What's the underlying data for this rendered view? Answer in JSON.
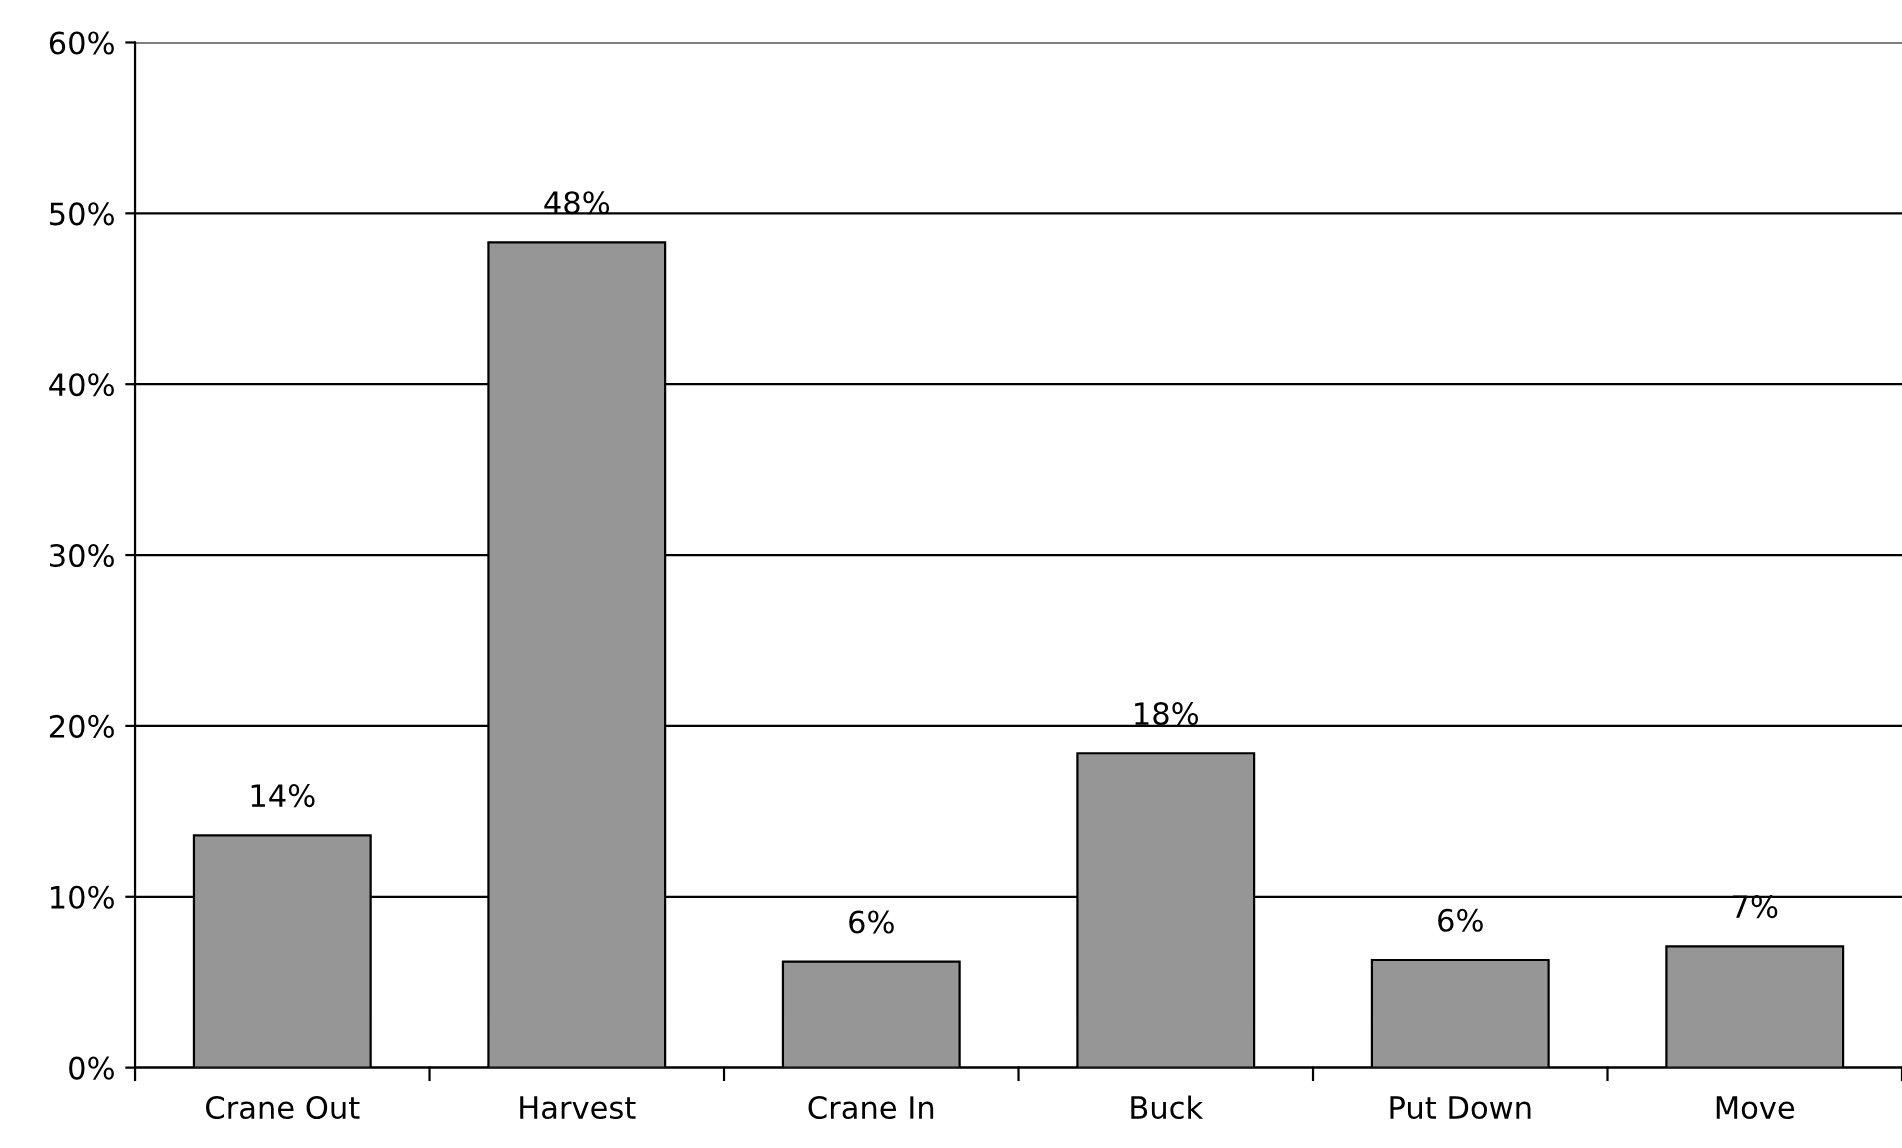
{
  "chart_data": {
    "type": "bar",
    "categories": [
      "Crane Out",
      "Harvest",
      "Crane In",
      "Buck",
      "Put Down",
      "Move"
    ],
    "values": [
      13.6,
      48.3,
      6.2,
      18.4,
      6.3,
      7.1
    ],
    "value_labels": [
      "14%",
      "48%",
      "6%",
      "18%",
      "6%",
      "7%"
    ],
    "color": "#969696",
    "ylim": [
      0,
      60
    ],
    "yticks": [
      {
        "value": 0,
        "label": "0%"
      },
      {
        "value": 10,
        "label": "10%"
      },
      {
        "value": 20,
        "label": "20%"
      },
      {
        "value": 30,
        "label": "30%"
      },
      {
        "value": 40,
        "label": "40%"
      },
      {
        "value": 50,
        "label": "50%"
      },
      {
        "value": 60,
        "label": "60%"
      }
    ],
    "grid": "y",
    "legend": false
  }
}
